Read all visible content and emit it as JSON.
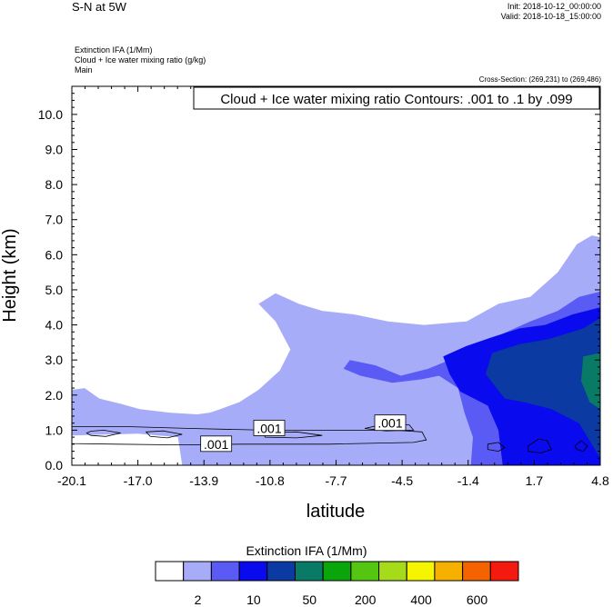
{
  "header": {
    "title": "S-N at 5W",
    "init": "Init: 2018-10-12_00:00:00",
    "valid": "Valid: 2018-10-18_15:00:00",
    "field1": "Extinction IFA   (1/Mm)",
    "field2": "Cloud + Ice water mixing ratio   (g/kg)",
    "field3": "Main",
    "cross_section": "Cross-Section: (269,231) to (269,486)"
  },
  "chart_data": {
    "type": "contour",
    "title": "Cloud + Ice water mixing ratio Contours: .001 to .1 by .099",
    "xlabel": "latitude",
    "ylabel": "Height (km)",
    "xlim": [
      -20.1,
      4.8
    ],
    "ylim": [
      0,
      10.8
    ],
    "x_ticks": [
      "-20.1",
      "-17.0",
      "-13.9",
      "-10.8",
      "-7.7",
      "-4.5",
      "-1.4",
      "1.7",
      "4.8"
    ],
    "y_ticks": [
      "0.0",
      "1.0",
      "2.0",
      "3.0",
      "4.0",
      "5.0",
      "6.0",
      "7.0",
      "8.0",
      "9.0",
      "10.0"
    ],
    "contour_labels": [
      {
        "text": ".001",
        "x": -13.3,
        "y": 0.6
      },
      {
        "text": ".001",
        "x": -10.8,
        "y": 1.05
      },
      {
        "text": ".001",
        "x": -5.1,
        "y": 1.2
      }
    ],
    "shaded_regions": [
      {
        "name": "level-2-10",
        "color": "#a7acf9",
        "points": [
          [
            -20.1,
            2.15
          ],
          [
            -19.5,
            2.2
          ],
          [
            -18.8,
            1.9
          ],
          [
            -17.8,
            1.75
          ],
          [
            -16.9,
            1.6
          ],
          [
            -15.5,
            1.5
          ],
          [
            -14.2,
            1.45
          ],
          [
            -13.6,
            1.5
          ],
          [
            -13.1,
            1.6
          ],
          [
            -12.2,
            1.8
          ],
          [
            -11.3,
            2.15
          ],
          [
            -10.3,
            2.7
          ],
          [
            -9.8,
            3.3
          ],
          [
            -10.5,
            4.1
          ],
          [
            -11.3,
            4.6
          ],
          [
            -10.5,
            4.9
          ],
          [
            -9.4,
            4.6
          ],
          [
            -8.3,
            4.4
          ],
          [
            -6.8,
            4.3
          ],
          [
            -5.2,
            4.1
          ],
          [
            -3.5,
            4.0
          ],
          [
            -1.5,
            4.1
          ],
          [
            0.0,
            4.6
          ],
          [
            1.5,
            4.8
          ],
          [
            2.8,
            5.5
          ],
          [
            3.7,
            6.3
          ],
          [
            4.4,
            6.55
          ],
          [
            4.8,
            6.5
          ],
          [
            4.8,
            0
          ],
          [
            -14.9,
            0
          ],
          [
            -15.1,
            0.8
          ],
          [
            -17.0,
            0.9
          ],
          [
            -20.1,
            0.85
          ]
        ]
      },
      {
        "name": "level-10-50",
        "color": "#5a5af5",
        "points": [
          [
            -7.0,
            3.0
          ],
          [
            -5.8,
            2.85
          ],
          [
            -4.6,
            2.55
          ],
          [
            -3.3,
            2.75
          ],
          [
            -2.1,
            3.05
          ],
          [
            -1.0,
            3.25
          ],
          [
            0.2,
            3.75
          ],
          [
            1.5,
            4.1
          ],
          [
            2.8,
            4.4
          ],
          [
            3.8,
            4.8
          ],
          [
            4.8,
            4.95
          ],
          [
            4.8,
            0
          ],
          [
            -1.3,
            0
          ],
          [
            -1.2,
            0.8
          ],
          [
            -1.6,
            1.5
          ],
          [
            -1.9,
            2.2
          ],
          [
            -2.8,
            2.55
          ],
          [
            -3.6,
            2.45
          ],
          [
            -5.0,
            2.35
          ],
          [
            -6.5,
            2.55
          ],
          [
            -7.3,
            2.75
          ]
        ]
      },
      {
        "name": "level-50-200",
        "color": "#0a0aee",
        "points": [
          [
            -2.6,
            3.1
          ],
          [
            -1.5,
            3.4
          ],
          [
            -0.3,
            3.65
          ],
          [
            1.0,
            3.9
          ],
          [
            2.2,
            4.0
          ],
          [
            3.5,
            4.3
          ],
          [
            4.8,
            4.5
          ],
          [
            4.8,
            0
          ],
          [
            0.2,
            0
          ],
          [
            0.0,
            1.0
          ],
          [
            -0.5,
            1.7
          ],
          [
            -1.8,
            2.1
          ],
          [
            -2.3,
            2.6
          ]
        ]
      },
      {
        "name": "level-200-400",
        "color": "#0b3aa3",
        "points": [
          [
            -0.3,
            3.2
          ],
          [
            1.0,
            3.45
          ],
          [
            2.4,
            3.6
          ],
          [
            4.0,
            3.9
          ],
          [
            4.8,
            4.2
          ],
          [
            4.8,
            0.2
          ],
          [
            3.8,
            1.2
          ],
          [
            2.5,
            1.6
          ],
          [
            1.2,
            1.8
          ],
          [
            0.3,
            1.9
          ],
          [
            -0.6,
            2.6
          ]
        ]
      },
      {
        "name": "level-400-600",
        "color": "#087a66",
        "points": [
          [
            4.0,
            3.1
          ],
          [
            4.8,
            3.2
          ],
          [
            4.8,
            1.6
          ],
          [
            4.3,
            1.8
          ],
          [
            3.9,
            2.4
          ]
        ]
      }
    ],
    "contour_lines": [
      [
        [
          -20.1,
          1.1
        ],
        [
          -17.5,
          1.1
        ],
        [
          -14.5,
          1.05
        ],
        [
          -11.0,
          1.0
        ],
        [
          -8.0,
          1.0
        ],
        [
          -4.9,
          1.0
        ],
        [
          -3.6,
          0.95
        ],
        [
          -3.4,
          0.72
        ],
        [
          -4.0,
          0.65
        ],
        [
          -8.0,
          0.6
        ],
        [
          -12.0,
          0.6
        ],
        [
          -15.0,
          0.58
        ],
        [
          -18.0,
          0.6
        ],
        [
          -20.1,
          0.62
        ]
      ],
      [
        [
          -19.2,
          0.97
        ],
        [
          -18.6,
          1.0
        ],
        [
          -17.8,
          0.92
        ],
        [
          -18.5,
          0.82
        ],
        [
          -19.2,
          0.85
        ],
        [
          -19.4,
          0.92
        ]
      ],
      [
        [
          -16.6,
          0.95
        ],
        [
          -15.8,
          0.98
        ],
        [
          -14.9,
          0.88
        ],
        [
          -15.6,
          0.78
        ],
        [
          -16.4,
          0.82
        ]
      ],
      [
        [
          -11.0,
          0.93
        ],
        [
          -9.5,
          0.95
        ],
        [
          -8.3,
          0.85
        ],
        [
          -9.5,
          0.78
        ],
        [
          -11.0,
          0.8
        ]
      ],
      [
        [
          -6.3,
          1.05
        ],
        [
          -5.2,
          1.2
        ],
        [
          -4.2,
          1.15
        ],
        [
          -4.0,
          1.0
        ],
        [
          -5.3,
          0.98
        ]
      ],
      [
        [
          1.4,
          0.55
        ],
        [
          1.9,
          0.75
        ],
        [
          2.3,
          0.7
        ],
        [
          2.5,
          0.45
        ],
        [
          2.0,
          0.35
        ],
        [
          1.4,
          0.4
        ]
      ],
      [
        [
          3.6,
          0.55
        ],
        [
          3.9,
          0.7
        ],
        [
          4.2,
          0.55
        ],
        [
          4.0,
          0.4
        ],
        [
          3.7,
          0.45
        ]
      ],
      [
        [
          -0.5,
          0.6
        ],
        [
          0.0,
          0.65
        ],
        [
          0.3,
          0.5
        ],
        [
          0.0,
          0.4
        ],
        [
          -0.5,
          0.45
        ]
      ]
    ]
  },
  "colorbar": {
    "title": "Extinction IFA  (1/Mm)",
    "colors": [
      "#ffffff",
      "#a7acf9",
      "#5a5af5",
      "#0a0aee",
      "#0b3aa3",
      "#087a66",
      "#0aa50a",
      "#54c510",
      "#a5db18",
      "#f5f500",
      "#f5b000",
      "#f56200",
      "#f51a10"
    ],
    "labels": [
      {
        "text": "2",
        "index": 1
      },
      {
        "text": "10",
        "index": 3
      },
      {
        "text": "50",
        "index": 5
      },
      {
        "text": "200",
        "index": 7
      },
      {
        "text": "400",
        "index": 9
      },
      {
        "text": "600",
        "index": 11
      }
    ]
  }
}
